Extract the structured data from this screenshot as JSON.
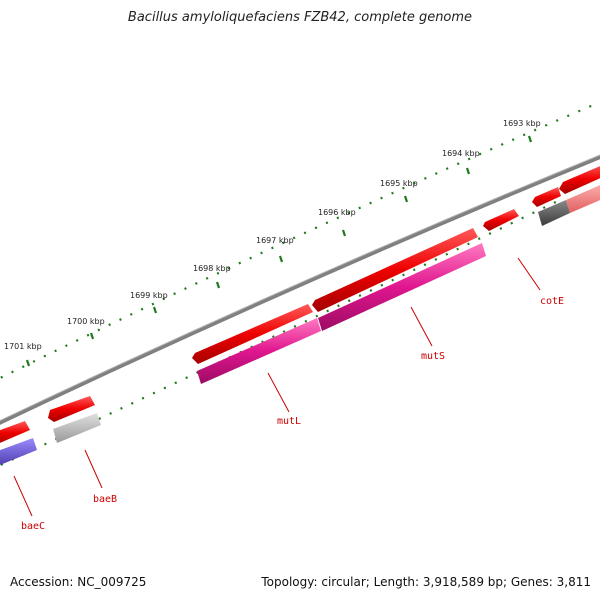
{
  "title": "Bacillus amyloliquefaciens FZB42, complete genome",
  "accession": "Accession: NC_009725",
  "summary": "Topology: circular; Length: 3,918,589 bp; Genes: 3,811",
  "ruler": {
    "labels": [
      "1693 kbp",
      "1694 kbp",
      "1695 kbp",
      "1696 kbp",
      "1697 kbp",
      "1698 kbp",
      "1699 kbp",
      "1700 kbp",
      "1701 kbp"
    ]
  },
  "genes": {
    "baeC": "baeC",
    "baeB": "baeB",
    "mutL": "mutL",
    "mutS": "mutS",
    "cotE": "cotE"
  },
  "colors": {
    "backbone": "#7a7a7a",
    "tick": "#1f7a1f",
    "forward_cds": "#ee0000",
    "mut_track": "#e0168f",
    "grey_track": "#bdbdbd",
    "dark_grey_track": "#5a5a5a",
    "pink_track": "#ff7f7f",
    "blue_track": "#6a5acd",
    "label": "#cc0000"
  }
}
